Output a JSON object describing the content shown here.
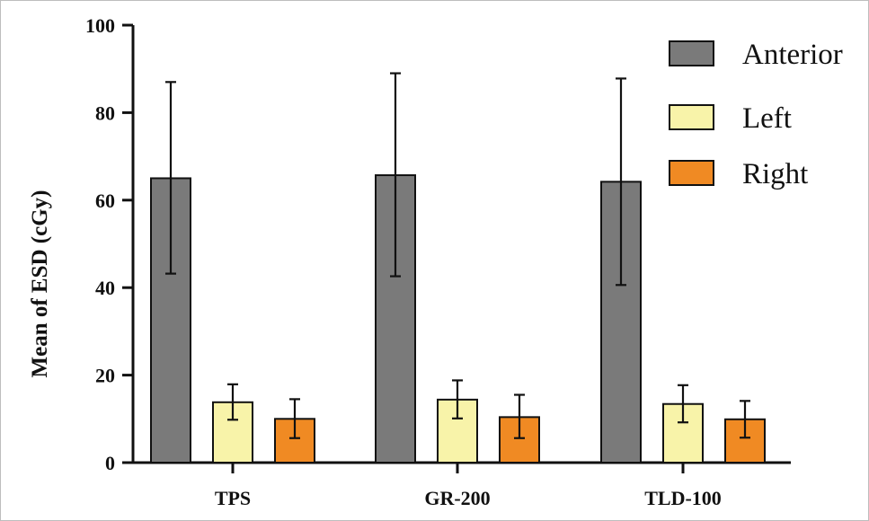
{
  "chart_data": {
    "type": "bar",
    "categories": [
      "TPS",
      "GR-200",
      "TLD-100"
    ],
    "series": [
      {
        "name": "Anterior",
        "color": "#7a7a7a",
        "values": [
          65,
          65.7,
          64.2
        ],
        "err_low": [
          43.2,
          42.6,
          40.6
        ],
        "err_high": [
          87,
          89,
          87.8
        ]
      },
      {
        "name": "Left",
        "color": "#f8f3a9",
        "values": [
          13.8,
          14.4,
          13.4
        ],
        "err_low": [
          9.8,
          10.1,
          9.2
        ],
        "err_high": [
          17.9,
          18.8,
          17.7
        ]
      },
      {
        "name": "Right",
        "color": "#f08a23",
        "values": [
          10,
          10.4,
          9.9
        ],
        "err_low": [
          5.6,
          5.6,
          5.7
        ],
        "err_high": [
          14.5,
          15.5,
          14.1
        ]
      }
    ],
    "ylabel": "Mean of ESD (cGy)",
    "xlabel": "",
    "ylim": [
      0,
      100
    ],
    "yticks": [
      "0",
      "20",
      "40",
      "60",
      "80",
      "100"
    ],
    "legend_position": "top-right",
    "grid": false
  }
}
